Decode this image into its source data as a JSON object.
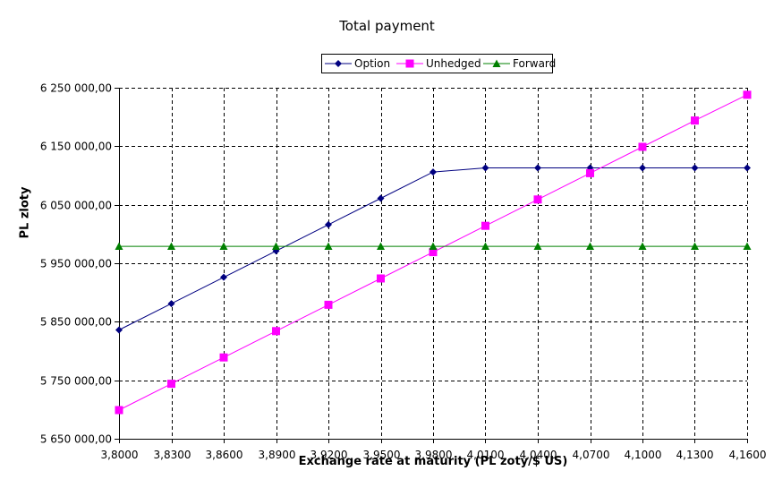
{
  "chart_data": {
    "type": "line",
    "title": "Total payment",
    "xlabel": "Exchange rate at maturity (PL zoty/$ US)",
    "ylabel": "PL  zloty",
    "categories": [
      "3,8000",
      "3,8300",
      "3,8600",
      "3,8900",
      "3,9200",
      "3,9500",
      "3,9800",
      "4,0100",
      "4,0400",
      "4,0700",
      "4,1000",
      "4,1300",
      "4,1600"
    ],
    "x": [
      3.8,
      3.83,
      3.86,
      3.89,
      3.92,
      3.95,
      3.98,
      4.01,
      4.04,
      4.07,
      4.1,
      4.13,
      4.16
    ],
    "ylim": [
      5650000,
      6250000
    ],
    "yticks": [
      5650000,
      5750000,
      5850000,
      5950000,
      6050000,
      6150000,
      6250000
    ],
    "ytick_labels": [
      "5 650 000,00",
      "5 750 000,00",
      "5 850 000,00",
      "5 950 000,00",
      "6 050 000,00",
      "6 150 000,00",
      "6 250 000,00"
    ],
    "grid": true,
    "legend_position": "top-center",
    "series": [
      {
        "name": "Option",
        "color": "#000080",
        "marker": "diamond",
        "values": [
          5836000,
          5881000,
          5926000,
          5971000,
          6016000,
          6061000,
          6106000,
          6113000,
          6113000,
          6113000,
          6113000,
          6113000,
          6113000
        ]
      },
      {
        "name": "Unhedged",
        "color": "#ff00ff",
        "marker": "square",
        "values": [
          5699000,
          5744000,
          5789000,
          5834000,
          5879000,
          5924000,
          5969000,
          6014000,
          6059000,
          6104000,
          6149000,
          6194000,
          6238000
        ]
      },
      {
        "name": "Forward",
        "color": "#008000",
        "marker": "triangle",
        "values": [
          5979000,
          5979000,
          5979000,
          5979000,
          5979000,
          5979000,
          5979000,
          5979000,
          5979000,
          5979000,
          5979000,
          5979000,
          5979000
        ]
      }
    ]
  }
}
